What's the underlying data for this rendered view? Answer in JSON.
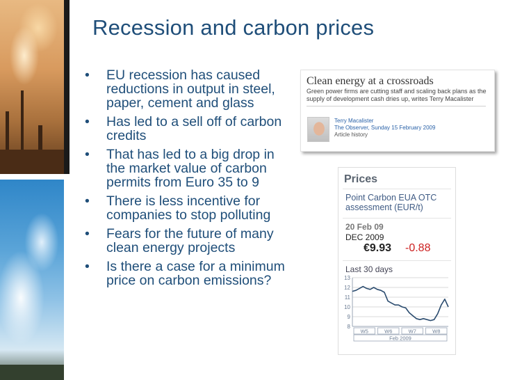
{
  "slide": {
    "title": "Recession and carbon prices",
    "bullets": [
      "EU recession has caused reductions in output in steel, paper, cement and glass",
      "Has led to a sell off of carbon credits",
      "That has led to a big drop in the market value of carbon permits from Euro 35 to 9",
      "There is less incentive for companies to stop polluting",
      "Fears for the future of many clean energy projects",
      "Is there a case for a minimum price on carbon emissions?"
    ],
    "bullet_glyph": "•"
  },
  "article": {
    "headline": "Clean energy at a crossroads",
    "standfirst": "Green power firms are cutting staff and scaling back plans as the supply of development cash dries up, writes Terry Macalister",
    "author": "Terry Macalister",
    "meta": "The Observer, Sunday 15 February 2009",
    "history": "Article history"
  },
  "prices": {
    "heading": "Prices",
    "description": "Point Carbon EUA OTC assessment (EUR/t)",
    "date": "20 Feb 09",
    "period": "DEC 2009",
    "value": "€9.93",
    "change": "-0.88",
    "last_label": "Last 30 days"
  },
  "chart_data": {
    "type": "line",
    "ylim": [
      8,
      13
    ],
    "yticks": [
      "8",
      "9",
      "10",
      "11",
      "12",
      "13"
    ],
    "week_labels": [
      "W5",
      "W6",
      "W7",
      "W8"
    ],
    "xlabel": "Feb 2009",
    "x": [
      0,
      1,
      2,
      3,
      4,
      5,
      6,
      7,
      8,
      9,
      10,
      11,
      12,
      13,
      14,
      15,
      16,
      17,
      18,
      19,
      20,
      21,
      22,
      23,
      24,
      25,
      26,
      27
    ],
    "values": [
      11.6,
      11.7,
      11.9,
      12.1,
      11.9,
      11.8,
      12.0,
      11.8,
      11.7,
      11.5,
      10.6,
      10.4,
      10.2,
      10.2,
      10.0,
      9.9,
      9.4,
      9.1,
      8.8,
      8.7,
      8.8,
      8.7,
      8.6,
      8.7,
      9.3,
      10.2,
      10.8,
      10.0
    ],
    "colors": {
      "line": "#2a4b6e",
      "grid": "#d8d8d8",
      "tick": "#6a7b92"
    }
  }
}
